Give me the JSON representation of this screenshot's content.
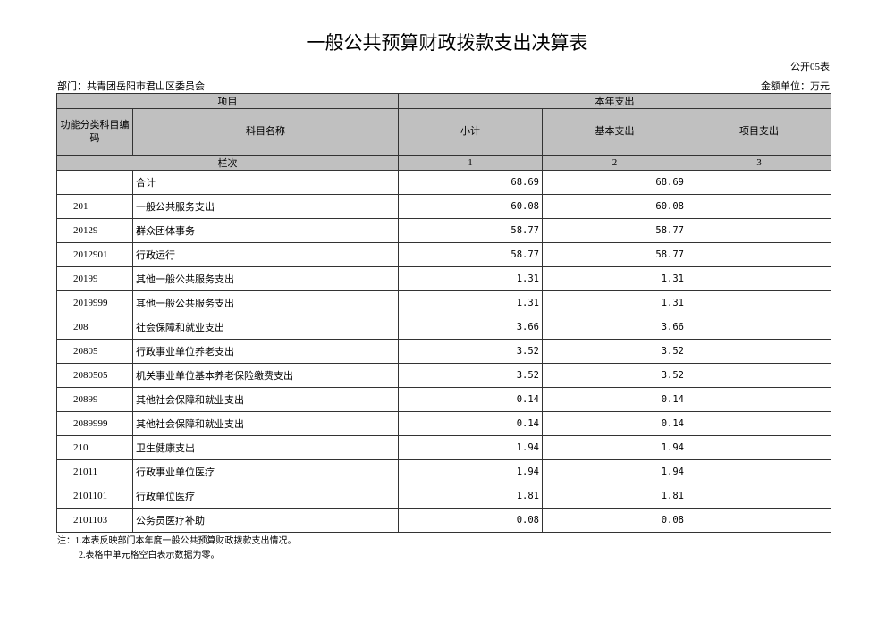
{
  "title": "一般公共预算财政拨款支出决算表",
  "table_no": "公开05表",
  "department": "部门：共青团岳阳市君山区委员会",
  "unit": "金额单位：万元",
  "headers": {
    "item": "项目",
    "current_year": "本年支出",
    "code": "功能分类科目编码",
    "name": "科目名称",
    "subtotal": "小计",
    "basic": "基本支出",
    "project": "项目支出",
    "col_order": "栏次",
    "c1": "1",
    "c2": "2",
    "c3": "3"
  },
  "rows": [
    {
      "code": "",
      "name": "合计",
      "subtotal": "68.69",
      "basic": "68.69",
      "project": ""
    },
    {
      "code": "201",
      "name": "一般公共服务支出",
      "subtotal": "60.08",
      "basic": "60.08",
      "project": ""
    },
    {
      "code": "20129",
      "name": "群众团体事务",
      "subtotal": "58.77",
      "basic": "58.77",
      "project": ""
    },
    {
      "code": "2012901",
      "name": "行政运行",
      "subtotal": "58.77",
      "basic": "58.77",
      "project": ""
    },
    {
      "code": "20199",
      "name": "其他一般公共服务支出",
      "subtotal": "1.31",
      "basic": "1.31",
      "project": ""
    },
    {
      "code": "2019999",
      "name": "其他一般公共服务支出",
      "subtotal": "1.31",
      "basic": "1.31",
      "project": ""
    },
    {
      "code": "208",
      "name": "社会保障和就业支出",
      "subtotal": "3.66",
      "basic": "3.66",
      "project": ""
    },
    {
      "code": "20805",
      "name": "行政事业单位养老支出",
      "subtotal": "3.52",
      "basic": "3.52",
      "project": ""
    },
    {
      "code": "2080505",
      "name": "机关事业单位基本养老保险缴费支出",
      "subtotal": "3.52",
      "basic": "3.52",
      "project": ""
    },
    {
      "code": "20899",
      "name": "其他社会保障和就业支出",
      "subtotal": "0.14",
      "basic": "0.14",
      "project": ""
    },
    {
      "code": "2089999",
      "name": "其他社会保障和就业支出",
      "subtotal": "0.14",
      "basic": "0.14",
      "project": ""
    },
    {
      "code": "210",
      "name": "卫生健康支出",
      "subtotal": "1.94",
      "basic": "1.94",
      "project": ""
    },
    {
      "code": "21011",
      "name": "行政事业单位医疗",
      "subtotal": "1.94",
      "basic": "1.94",
      "project": ""
    },
    {
      "code": "2101101",
      "name": "行政单位医疗",
      "subtotal": "1.81",
      "basic": "1.81",
      "project": ""
    },
    {
      "code": "2101103",
      "name": "公务员医疗补助",
      "subtotal": "0.08",
      "basic": "0.08",
      "project": ""
    }
  ],
  "notes": [
    "注：1.本表反映部门本年度一般公共预算财政拨款支出情况。",
    "2.表格中单元格空白表示数据为零。"
  ]
}
